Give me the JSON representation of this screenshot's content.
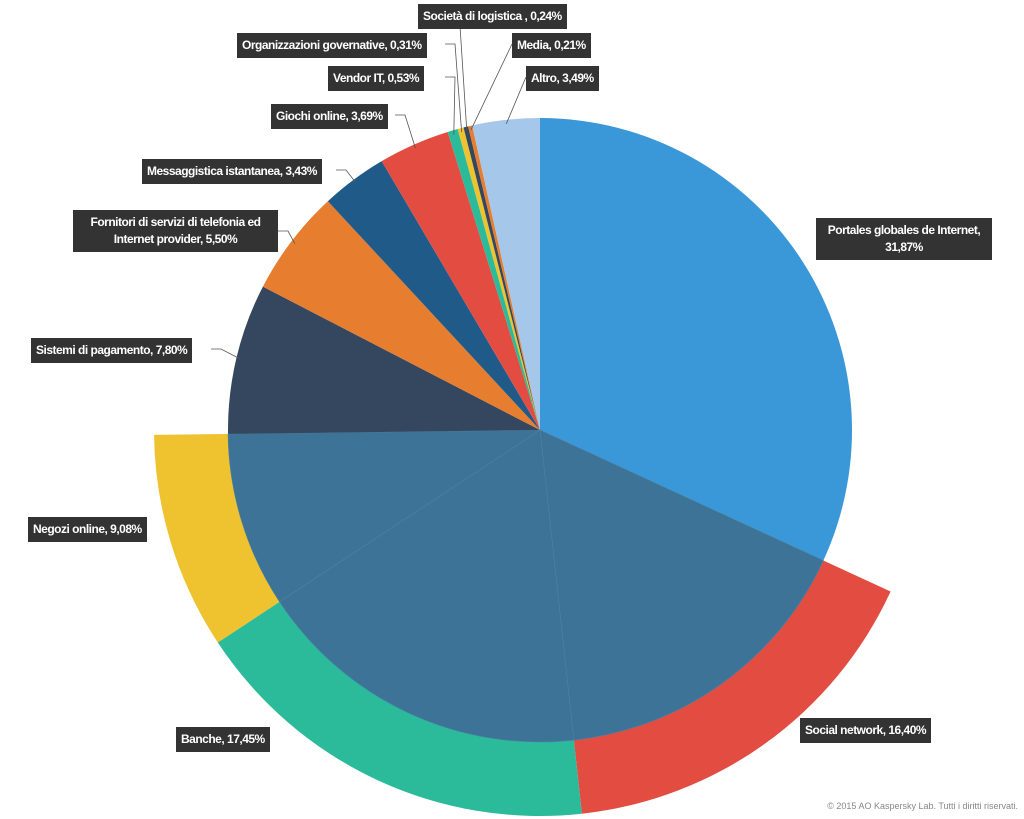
{
  "chart_data": {
    "type": "pie",
    "categories": [
      "Portales globales de Internet, 31,87%",
      "Social network, 16,40%",
      "Banche, 17,45%",
      "Negozi online, 9,08%",
      "Sistemi di pagamento, 7,80%",
      "Fornitori di servizi di telefonia ed Internet provider, 5,50%",
      "Messaggistica istantanea, 3,43%",
      "Giochi online, 3,69%",
      "Vendor IT, 0,53%",
      "Organizzazioni governative, 0,31%",
      "Società di logistica , 0,24%",
      "Media, 0,21%",
      "Altro, 3,49%"
    ],
    "values": [
      31.87,
      16.4,
      17.45,
      9.08,
      7.8,
      5.5,
      3.43,
      3.69,
      0.53,
      0.31,
      0.24,
      0.21,
      3.49
    ],
    "colors": [
      "#3a98d8",
      "#e34c41",
      "#2bbb9a",
      "#efc230",
      "#34475e",
      "#e67d2f",
      "#1f5a89",
      "#e34c41",
      "#2bbb9a",
      "#efc230",
      "#34475e",
      "#e67d2f",
      "#a5c7ea"
    ],
    "source": "© 2015 AO Kaspersky Lab. Tutti i diritti riservati."
  }
}
